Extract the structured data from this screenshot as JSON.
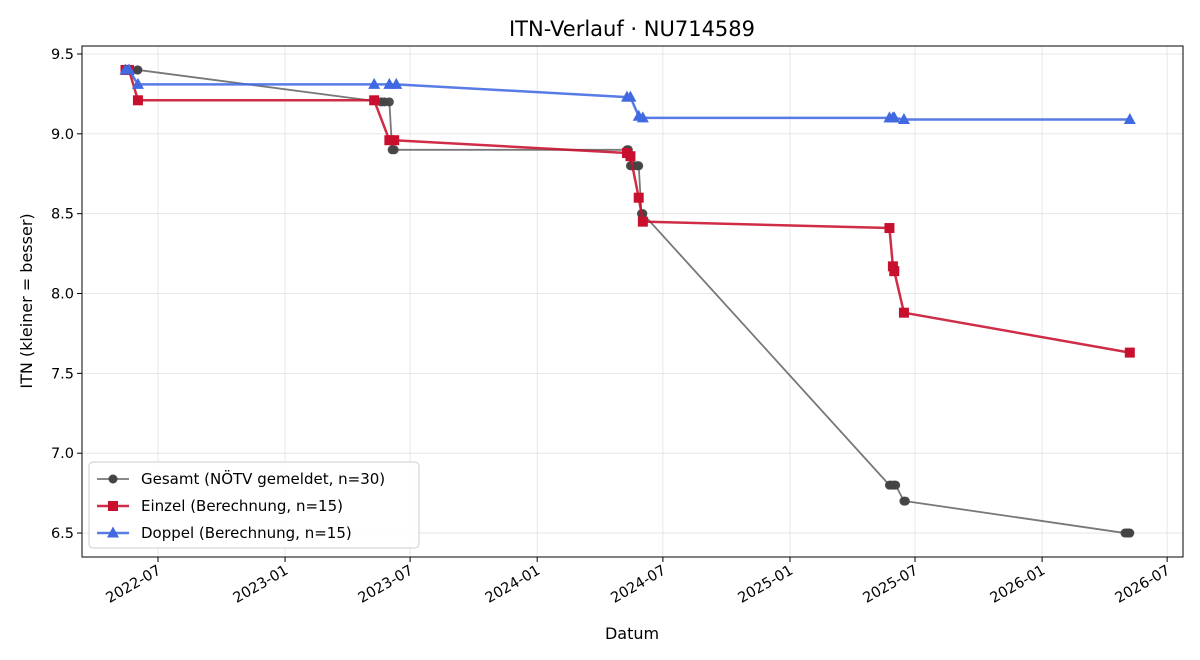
{
  "chart_data": {
    "type": "line",
    "title": "ITN-Verlauf · NU714589",
    "xlabel": "Datum",
    "ylabel": "ITN  (kleiner = besser)",
    "xlim": [
      "2022-03-13",
      "2026-07-24"
    ],
    "ylim": [
      6.35,
      9.55
    ],
    "xticks": [
      {
        "date": "2022-07-01",
        "label": "2022-07"
      },
      {
        "date": "2023-01-01",
        "label": "2023-01"
      },
      {
        "date": "2023-07-01",
        "label": "2023-07"
      },
      {
        "date": "2024-01-01",
        "label": "2024-01"
      },
      {
        "date": "2024-07-01",
        "label": "2024-07"
      },
      {
        "date": "2025-01-01",
        "label": "2025-01"
      },
      {
        "date": "2025-07-01",
        "label": "2025-07"
      },
      {
        "date": "2026-01-01",
        "label": "2026-01"
      },
      {
        "date": "2026-07-01",
        "label": "2026-07"
      }
    ],
    "yticks": [
      {
        "value": 6.5,
        "label": "6.5"
      },
      {
        "value": 7.0,
        "label": "7.0"
      },
      {
        "value": 7.5,
        "label": "7.5"
      },
      {
        "value": 8.0,
        "label": "8.0"
      },
      {
        "value": 8.5,
        "label": "8.5"
      },
      {
        "value": 9.0,
        "label": "9.0"
      },
      {
        "value": 9.5,
        "label": "9.5"
      }
    ],
    "grid": true,
    "legend_position": "lower-left",
    "series": [
      {
        "name": "Gesamt (NÖTV gemeldet, n=30)",
        "color": "#444444",
        "marker": "circle",
        "points": [
          {
            "x": "2022-05-15",
            "y": 9.4
          },
          {
            "x": "2022-05-20",
            "y": 9.4
          },
          {
            "x": "2022-06-01",
            "y": 9.4
          },
          {
            "x": "2022-06-02",
            "y": 9.4
          },
          {
            "x": "2023-05-20",
            "y": 9.2
          },
          {
            "x": "2023-05-25",
            "y": 9.2
          },
          {
            "x": "2023-06-01",
            "y": 9.2
          },
          {
            "x": "2023-06-05",
            "y": 8.9
          },
          {
            "x": "2023-06-08",
            "y": 8.9
          },
          {
            "x": "2024-05-10",
            "y": 8.9
          },
          {
            "x": "2024-05-12",
            "y": 8.9
          },
          {
            "x": "2024-05-15",
            "y": 8.8
          },
          {
            "x": "2024-05-17",
            "y": 8.8
          },
          {
            "x": "2024-05-20",
            "y": 8.8
          },
          {
            "x": "2024-05-25",
            "y": 8.8
          },
          {
            "x": "2024-05-27",
            "y": 8.8
          },
          {
            "x": "2024-05-31",
            "y": 8.5
          },
          {
            "x": "2024-06-02",
            "y": 8.5
          },
          {
            "x": "2025-05-25",
            "y": 6.8
          },
          {
            "x": "2025-05-27",
            "y": 6.8
          },
          {
            "x": "2025-05-30",
            "y": 6.8
          },
          {
            "x": "2025-06-01",
            "y": 6.8
          },
          {
            "x": "2025-06-03",
            "y": 6.8
          },
          {
            "x": "2025-06-15",
            "y": 6.7
          },
          {
            "x": "2025-06-17",
            "y": 6.7
          },
          {
            "x": "2026-05-01",
            "y": 6.5
          },
          {
            "x": "2026-05-03",
            "y": 6.5
          },
          {
            "x": "2026-05-05",
            "y": 6.5
          },
          {
            "x": "2026-05-07",
            "y": 6.5
          },
          {
            "x": "2026-05-08",
            "y": 6.5
          }
        ]
      },
      {
        "name": "Einzel (Berechnung, n=15)",
        "color": "#c8102e",
        "marker": "square",
        "points": [
          {
            "x": "2022-05-15",
            "y": 9.4
          },
          {
            "x": "2022-05-20",
            "y": 9.4
          },
          {
            "x": "2022-06-02",
            "y": 9.21
          },
          {
            "x": "2023-05-10",
            "y": 9.21
          },
          {
            "x": "2023-06-01",
            "y": 8.96
          },
          {
            "x": "2023-06-08",
            "y": 8.96
          },
          {
            "x": "2024-05-10",
            "y": 8.88
          },
          {
            "x": "2024-05-15",
            "y": 8.86
          },
          {
            "x": "2024-05-27",
            "y": 8.6
          },
          {
            "x": "2024-06-02",
            "y": 8.45
          },
          {
            "x": "2025-05-25",
            "y": 8.41
          },
          {
            "x": "2025-05-30",
            "y": 8.17
          },
          {
            "x": "2025-06-01",
            "y": 8.14
          },
          {
            "x": "2025-06-15",
            "y": 7.88
          },
          {
            "x": "2026-05-08",
            "y": 7.63
          }
        ]
      },
      {
        "name": "Doppel (Berechnung, n=15)",
        "color": "#4169e1",
        "marker": "triangle",
        "points": [
          {
            "x": "2022-05-15",
            "y": 9.4
          },
          {
            "x": "2022-05-20",
            "y": 9.4
          },
          {
            "x": "2022-06-02",
            "y": 9.31
          },
          {
            "x": "2023-05-10",
            "y": 9.31
          },
          {
            "x": "2023-06-01",
            "y": 9.31
          },
          {
            "x": "2023-06-11",
            "y": 9.31
          },
          {
            "x": "2024-05-10",
            "y": 9.23
          },
          {
            "x": "2024-05-15",
            "y": 9.23
          },
          {
            "x": "2024-05-27",
            "y": 9.11
          },
          {
            "x": "2024-06-02",
            "y": 9.1
          },
          {
            "x": "2025-05-25",
            "y": 9.1
          },
          {
            "x": "2025-05-30",
            "y": 9.1
          },
          {
            "x": "2025-06-01",
            "y": 9.1
          },
          {
            "x": "2025-06-15",
            "y": 9.09
          },
          {
            "x": "2026-05-08",
            "y": 9.09
          }
        ]
      }
    ]
  }
}
